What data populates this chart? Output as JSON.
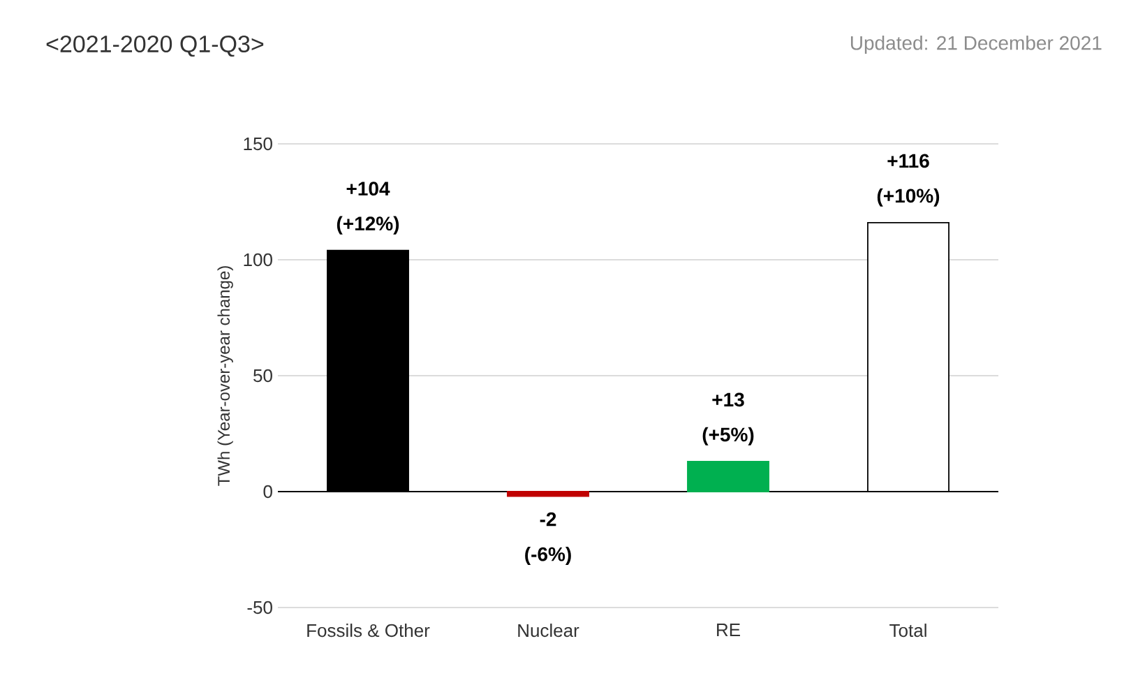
{
  "chart_data": {
    "type": "bar",
    "title": "<2021-2020 Q1-Q3>",
    "subtitle": "Updated: 21 December 2021",
    "ylabel": "TWh (Year-over-year change)",
    "categories": [
      "Fossils & Other",
      "Nuclear",
      "RE",
      "Total"
    ],
    "values": [
      104,
      -2,
      13,
      116
    ],
    "colors": [
      "#000000",
      "#c00000",
      "#00b050",
      "#ffffff"
    ],
    "value_labels": [
      "+104 (+12%)",
      "-2 (-6%)",
      "+13 (+5%)",
      "+116 (+10%)"
    ],
    "ylim": [
      -50,
      150
    ],
    "yticks": [
      -50,
      0,
      50,
      100,
      150
    ],
    "grid": "y"
  }
}
